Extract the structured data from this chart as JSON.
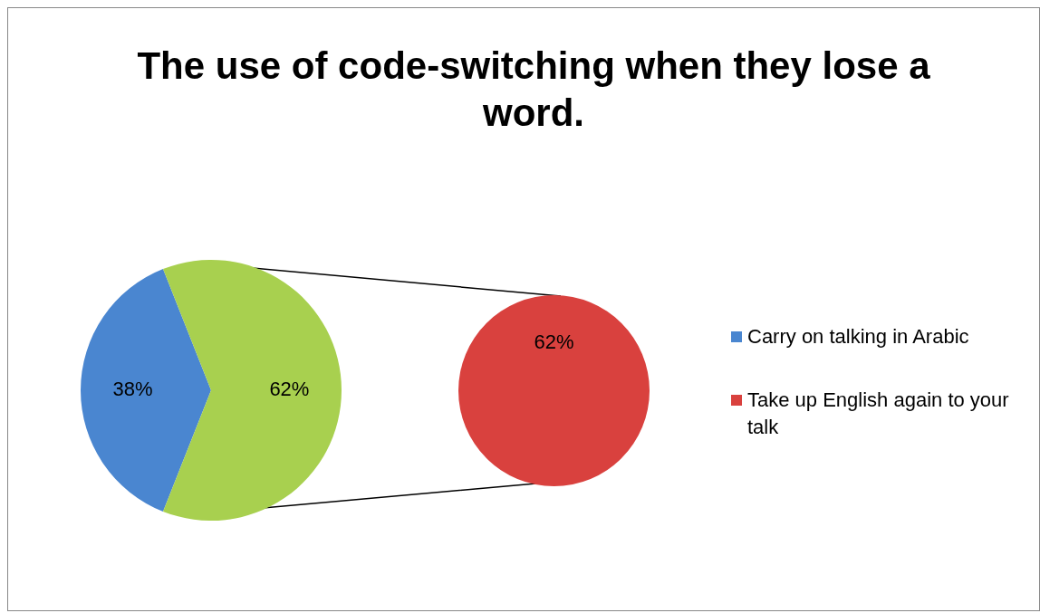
{
  "chart_data": [
    {
      "type": "pie",
      "title": "The use of code-switching when  they  lose a word.",
      "categories": [
        "Carry on talking in Arabic",
        null
      ],
      "values": [
        38,
        62
      ],
      "colors": [
        "#4a86d0",
        "#a8d04f"
      ],
      "value_labels": [
        "38%",
        "62%"
      ],
      "legend": "right"
    },
    {
      "type": "pie",
      "categories": [
        "Take up English again to your talk"
      ],
      "values": [
        62
      ],
      "colors": [
        "#d9413e"
      ],
      "value_labels": [
        "62%"
      ],
      "legend": "right"
    }
  ]
}
